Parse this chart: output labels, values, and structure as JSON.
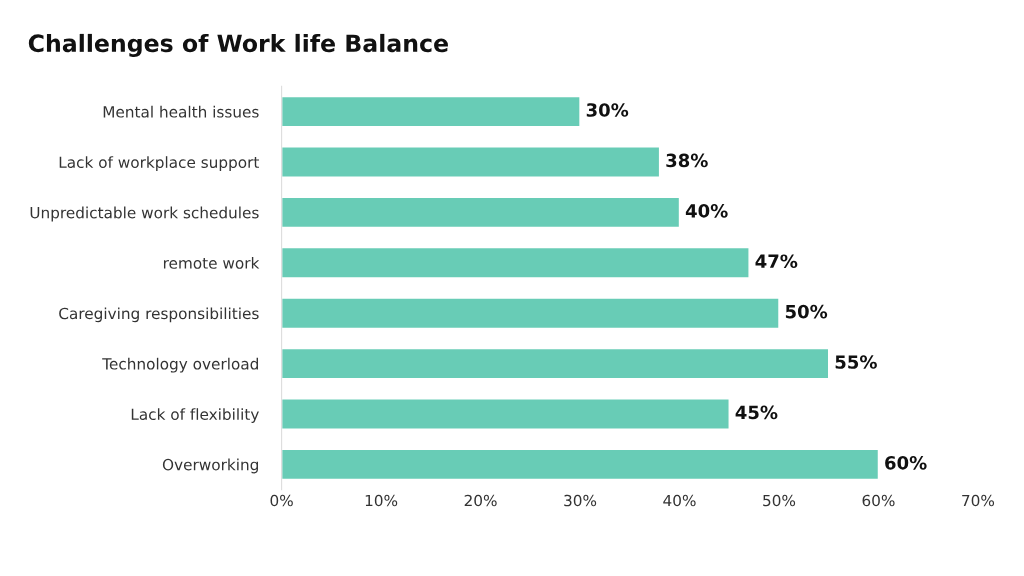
{
  "chart_data": {
    "type": "bar",
    "orientation": "horizontal",
    "title": "Challenges of Work life Balance",
    "categories": [
      "Mental health issues",
      "Lack of workplace support",
      "Unpredictable work schedules",
      "remote work",
      "Caregiving responsibilities",
      "Technology overload",
      "Lack of flexibility",
      "Overworking"
    ],
    "values": [
      30,
      38,
      40,
      47,
      50,
      55,
      45,
      60
    ],
    "color": "#68ccb6",
    "value_labels": [
      "30%",
      "38%",
      "40%",
      "47%",
      "50%",
      "55%",
      "45%",
      "60%"
    ],
    "xlim": [
      0,
      70
    ],
    "xticks": [
      {
        "value": 0,
        "label": "0%"
      },
      {
        "value": 10,
        "label": "10%"
      },
      {
        "value": 20,
        "label": "20%"
      },
      {
        "value": 30,
        "label": "30%"
      },
      {
        "value": 40,
        "label": "40%"
      },
      {
        "value": 50,
        "label": "50%"
      },
      {
        "value": 60,
        "label": "60%"
      },
      {
        "value": 70,
        "label": "70%"
      }
    ],
    "grid": false
  }
}
